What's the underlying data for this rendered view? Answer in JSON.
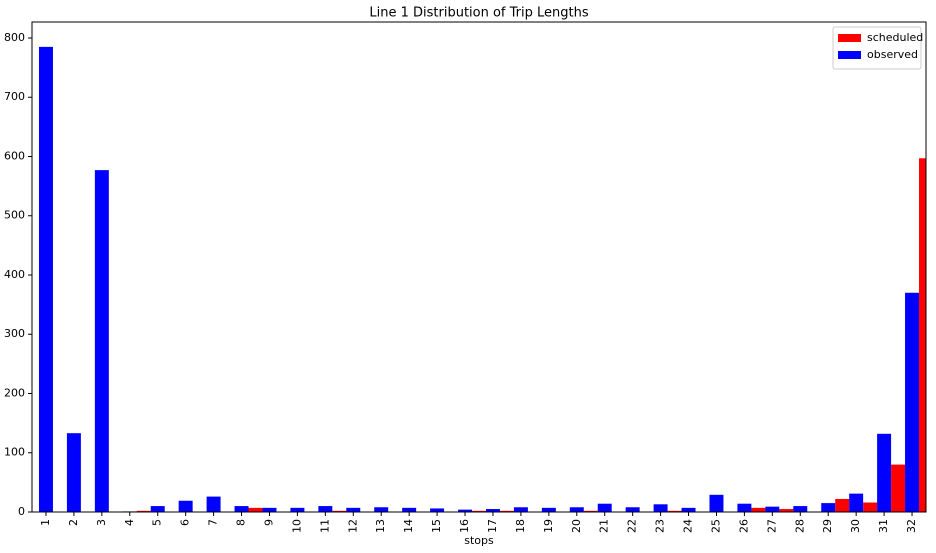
{
  "chart_data": {
    "type": "bar",
    "title": "Line 1 Distribution of Trip Lengths",
    "x_label": "stops",
    "categories": [
      "1",
      "2",
      "3",
      "4",
      "5",
      "6",
      "7",
      "8",
      "9",
      "10",
      "11",
      "12",
      "13",
      "14",
      "15",
      "16",
      "17",
      "18",
      "19",
      "20",
      "21",
      "22",
      "23",
      "24",
      "25",
      "26",
      "27",
      "28",
      "29",
      "30",
      "31",
      "32"
    ],
    "series": [
      {
        "name": "scheduled",
        "color": "#ff0000",
        "values": [
          0,
          0,
          0,
          2,
          0,
          0,
          0,
          7,
          0,
          0,
          2,
          0,
          0,
          0,
          0,
          2,
          2,
          0,
          0,
          2,
          0,
          0,
          2,
          0,
          0,
          7,
          5,
          0,
          22,
          16,
          80,
          597
        ]
      },
      {
        "name": "observed",
        "color": "#0000ff",
        "values": [
          785,
          133,
          577,
          1,
          10,
          19,
          26,
          10,
          7,
          7,
          10,
          7,
          8,
          7,
          6,
          4,
          5,
          8,
          7,
          8,
          14,
          8,
          13,
          7,
          29,
          14,
          9,
          10,
          15,
          31,
          132,
          370
        ]
      }
    ],
    "ylim": [
      0,
      827
    ],
    "yticks": [
      0,
      100,
      200,
      300,
      400,
      500,
      600,
      700,
      800
    ],
    "legend": "upper right"
  }
}
